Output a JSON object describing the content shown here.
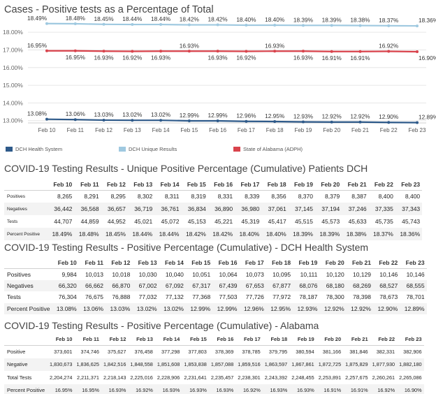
{
  "chart_data": {
    "type": "line",
    "title": "Cases - Positive tests as a Percentage of Total",
    "categories": [
      "Feb 10",
      "Feb 11",
      "Feb 12",
      "Feb 13",
      "Feb 14",
      "Feb 15",
      "Feb 16",
      "Feb 17",
      "Feb 18",
      "Feb 19",
      "Feb 20",
      "Feb 21",
      "Feb 22",
      "Feb 23"
    ],
    "y_ticks": [
      "18.00%",
      "17.00%",
      "16.00%",
      "15.00%",
      "14.00%",
      "13.00%"
    ],
    "ylim": [
      12.87,
      18.6
    ],
    "series": [
      {
        "name": "DCH Unique Results",
        "color": "#9fc9e0",
        "values": [
          18.49,
          18.48,
          18.45,
          18.44,
          18.44,
          18.42,
          18.42,
          18.4,
          18.4,
          18.39,
          18.39,
          18.38,
          18.37,
          18.36
        ],
        "labels": [
          "18.49%",
          "18.48%",
          "18.45%",
          "18.44%",
          "18.44%",
          "18.42%",
          "18.42%",
          "18.40%",
          "18.40%",
          "18.39%",
          "18.39%",
          "18.38%",
          "18.37%",
          "18.36%"
        ]
      },
      {
        "name": "State of Alabama (ADPH)",
        "color": "#d9434c",
        "values": [
          16.95,
          16.95,
          16.93,
          16.92,
          16.93,
          16.93,
          16.93,
          16.92,
          16.93,
          16.93,
          16.91,
          16.91,
          16.92,
          16.9
        ],
        "labels": [
          "16.95%",
          "16.95%",
          "16.93%",
          "16.92%",
          "16.93%",
          "16.93%",
          "16.93%",
          "16.92%",
          "16.93%",
          "16.93%",
          "16.91%",
          "16.91%",
          "16.92%",
          "16.90%"
        ]
      },
      {
        "name": "DCH Health System",
        "color": "#2e5a8a",
        "values": [
          13.08,
          13.06,
          13.03,
          13.02,
          13.02,
          12.99,
          12.99,
          12.96,
          12.95,
          12.93,
          12.92,
          12.92,
          12.9,
          12.89
        ],
        "labels": [
          "13.08%",
          "13.06%",
          "13.03%",
          "13.02%",
          "13.02%",
          "12.99%",
          "12.99%",
          "12.96%",
          "12.95%",
          "12.93%",
          "12.92%",
          "12.92%",
          "12.90%",
          "12.89%"
        ]
      }
    ],
    "legend": [
      "DCH Health System",
      "DCH Unique Results",
      "State of Alabama (ADPH)"
    ]
  },
  "legend": {
    "dch_health": {
      "label": "DCH Health System",
      "color": "#2e5a8a"
    },
    "dch_unique": {
      "label": "DCH Unique Results",
      "color": "#9fc9e0"
    },
    "alabama": {
      "label": "State of Alabama (ADPH)",
      "color": "#d9434c"
    }
  },
  "tables": [
    {
      "title": "COVID-19 Testing Results - Unique Positive Percentage (Cumulative) Patients DCH",
      "columns": [
        "Feb 10",
        "Feb 11",
        "Feb 12",
        "Feb 13",
        "Feb 14",
        "Feb 15",
        "Feb 16",
        "Feb 17",
        "Feb 18",
        "Feb 19",
        "Feb 20",
        "Feb 21",
        "Feb 22",
        "Feb 23"
      ],
      "rows": [
        {
          "label": "Positives",
          "cells": [
            "8,265",
            "8,291",
            "8,295",
            "8,302",
            "8,311",
            "8,319",
            "8,331",
            "8,339",
            "8,356",
            "8,370",
            "8,379",
            "8,387",
            "8,400",
            "8,400"
          ]
        },
        {
          "label": "Negatives",
          "cells": [
            "36,442",
            "36,568",
            "36,657",
            "36,719",
            "36,761",
            "36,834",
            "36,890",
            "36,980",
            "37,061",
            "37,145",
            "37,194",
            "37,246",
            "37,335",
            "37,343"
          ]
        },
        {
          "label": "Tests",
          "cells": [
            "44,707",
            "44,859",
            "44,952",
            "45,021",
            "45,072",
            "45,153",
            "45,221",
            "45,319",
            "45,417",
            "45,515",
            "45,573",
            "45,633",
            "45,735",
            "45,743"
          ]
        },
        {
          "label": "Percent Positive",
          "cells": [
            "18.49%",
            "18.48%",
            "18.45%",
            "18.44%",
            "18.44%",
            "18.42%",
            "18.42%",
            "18.40%",
            "18.40%",
            "18.39%",
            "18.39%",
            "18.38%",
            "18.37%",
            "18.36%"
          ]
        }
      ]
    },
    {
      "title": "COVID-19 Testing Results - Positive Percentage (Cumulative) - DCH Health System",
      "columns": [
        "Feb 10",
        "Feb 11",
        "Feb 12",
        "Feb 13",
        "Feb 14",
        "Feb 15",
        "Feb 16",
        "Feb 17",
        "Feb 18",
        "Feb 19",
        "Feb 20",
        "Feb 21",
        "Feb 22",
        "Feb 23"
      ],
      "rows": [
        {
          "label": "Positives",
          "cells": [
            "9,984",
            "10,013",
            "10,018",
            "10,030",
            "10,040",
            "10,051",
            "10,064",
            "10,073",
            "10,095",
            "10,111",
            "10,120",
            "10,129",
            "10,146",
            "10,146"
          ]
        },
        {
          "label": "Negatives",
          "cells": [
            "66,320",
            "66,662",
            "66,870",
            "67,002",
            "67,092",
            "67,317",
            "67,439",
            "67,653",
            "67,877",
            "68,076",
            "68,180",
            "68,269",
            "68,527",
            "68,555"
          ]
        },
        {
          "label": "Tests",
          "cells": [
            "76,304",
            "76,675",
            "76,888",
            "77,032",
            "77,132",
            "77,368",
            "77,503",
            "77,726",
            "77,972",
            "78,187",
            "78,300",
            "78,398",
            "78,673",
            "78,701"
          ]
        },
        {
          "label": "Percent Positive",
          "cells": [
            "13.08%",
            "13.06%",
            "13.03%",
            "13.02%",
            "13.02%",
            "12.99%",
            "12.99%",
            "12.96%",
            "12.95%",
            "12.93%",
            "12.92%",
            "12.92%",
            "12.90%",
            "12.89%"
          ]
        }
      ]
    },
    {
      "title": "COVID-19 Testing Results - Positive Percentage (Cumulative) - Alabama",
      "columns": [
        "Feb 10",
        "Feb 11",
        "Feb 12",
        "Feb 13",
        "Feb 14",
        "Feb 15",
        "Feb 16",
        "Feb 17",
        "Feb 18",
        "Feb 19",
        "Feb 20",
        "Feb 21",
        "Feb 22",
        "Feb 23"
      ],
      "rows": [
        {
          "label": "Positive",
          "cells": [
            "373,601",
            "374,746",
            "375,627",
            "376,458",
            "377,298",
            "377,803",
            "378,369",
            "378,785",
            "379,795",
            "380,594",
            "381,166",
            "381,846",
            "382,331",
            "382,906"
          ]
        },
        {
          "label": "Negative",
          "cells": [
            "1,830,673",
            "1,836,625",
            "1,842,516",
            "1,848,558",
            "1,851,608",
            "1,853,838",
            "1,857,088",
            "1,859,516",
            "1,863,597",
            "1,867,861",
            "1,872,725",
            "1,875,829",
            "1,877,930",
            "1,882,180"
          ]
        },
        {
          "label": "Total Tests",
          "cells": [
            "2,204,274",
            "2,211,371",
            "2,218,143",
            "2,225,016",
            "2,228,906",
            "2,231,641",
            "2,235,457",
            "2,238,301",
            "2,243,392",
            "2,248,455",
            "2,253,891",
            "2,257,675",
            "2,260,261",
            "2,265,086"
          ]
        },
        {
          "label": "Percent Positive",
          "cells": [
            "16.95%",
            "16.95%",
            "16.93%",
            "16.92%",
            "16.93%",
            "16.93%",
            "16.93%",
            "16.92%",
            "16.93%",
            "16.93%",
            "16.91%",
            "16.91%",
            "16.92%",
            "16.90%"
          ]
        }
      ]
    }
  ]
}
